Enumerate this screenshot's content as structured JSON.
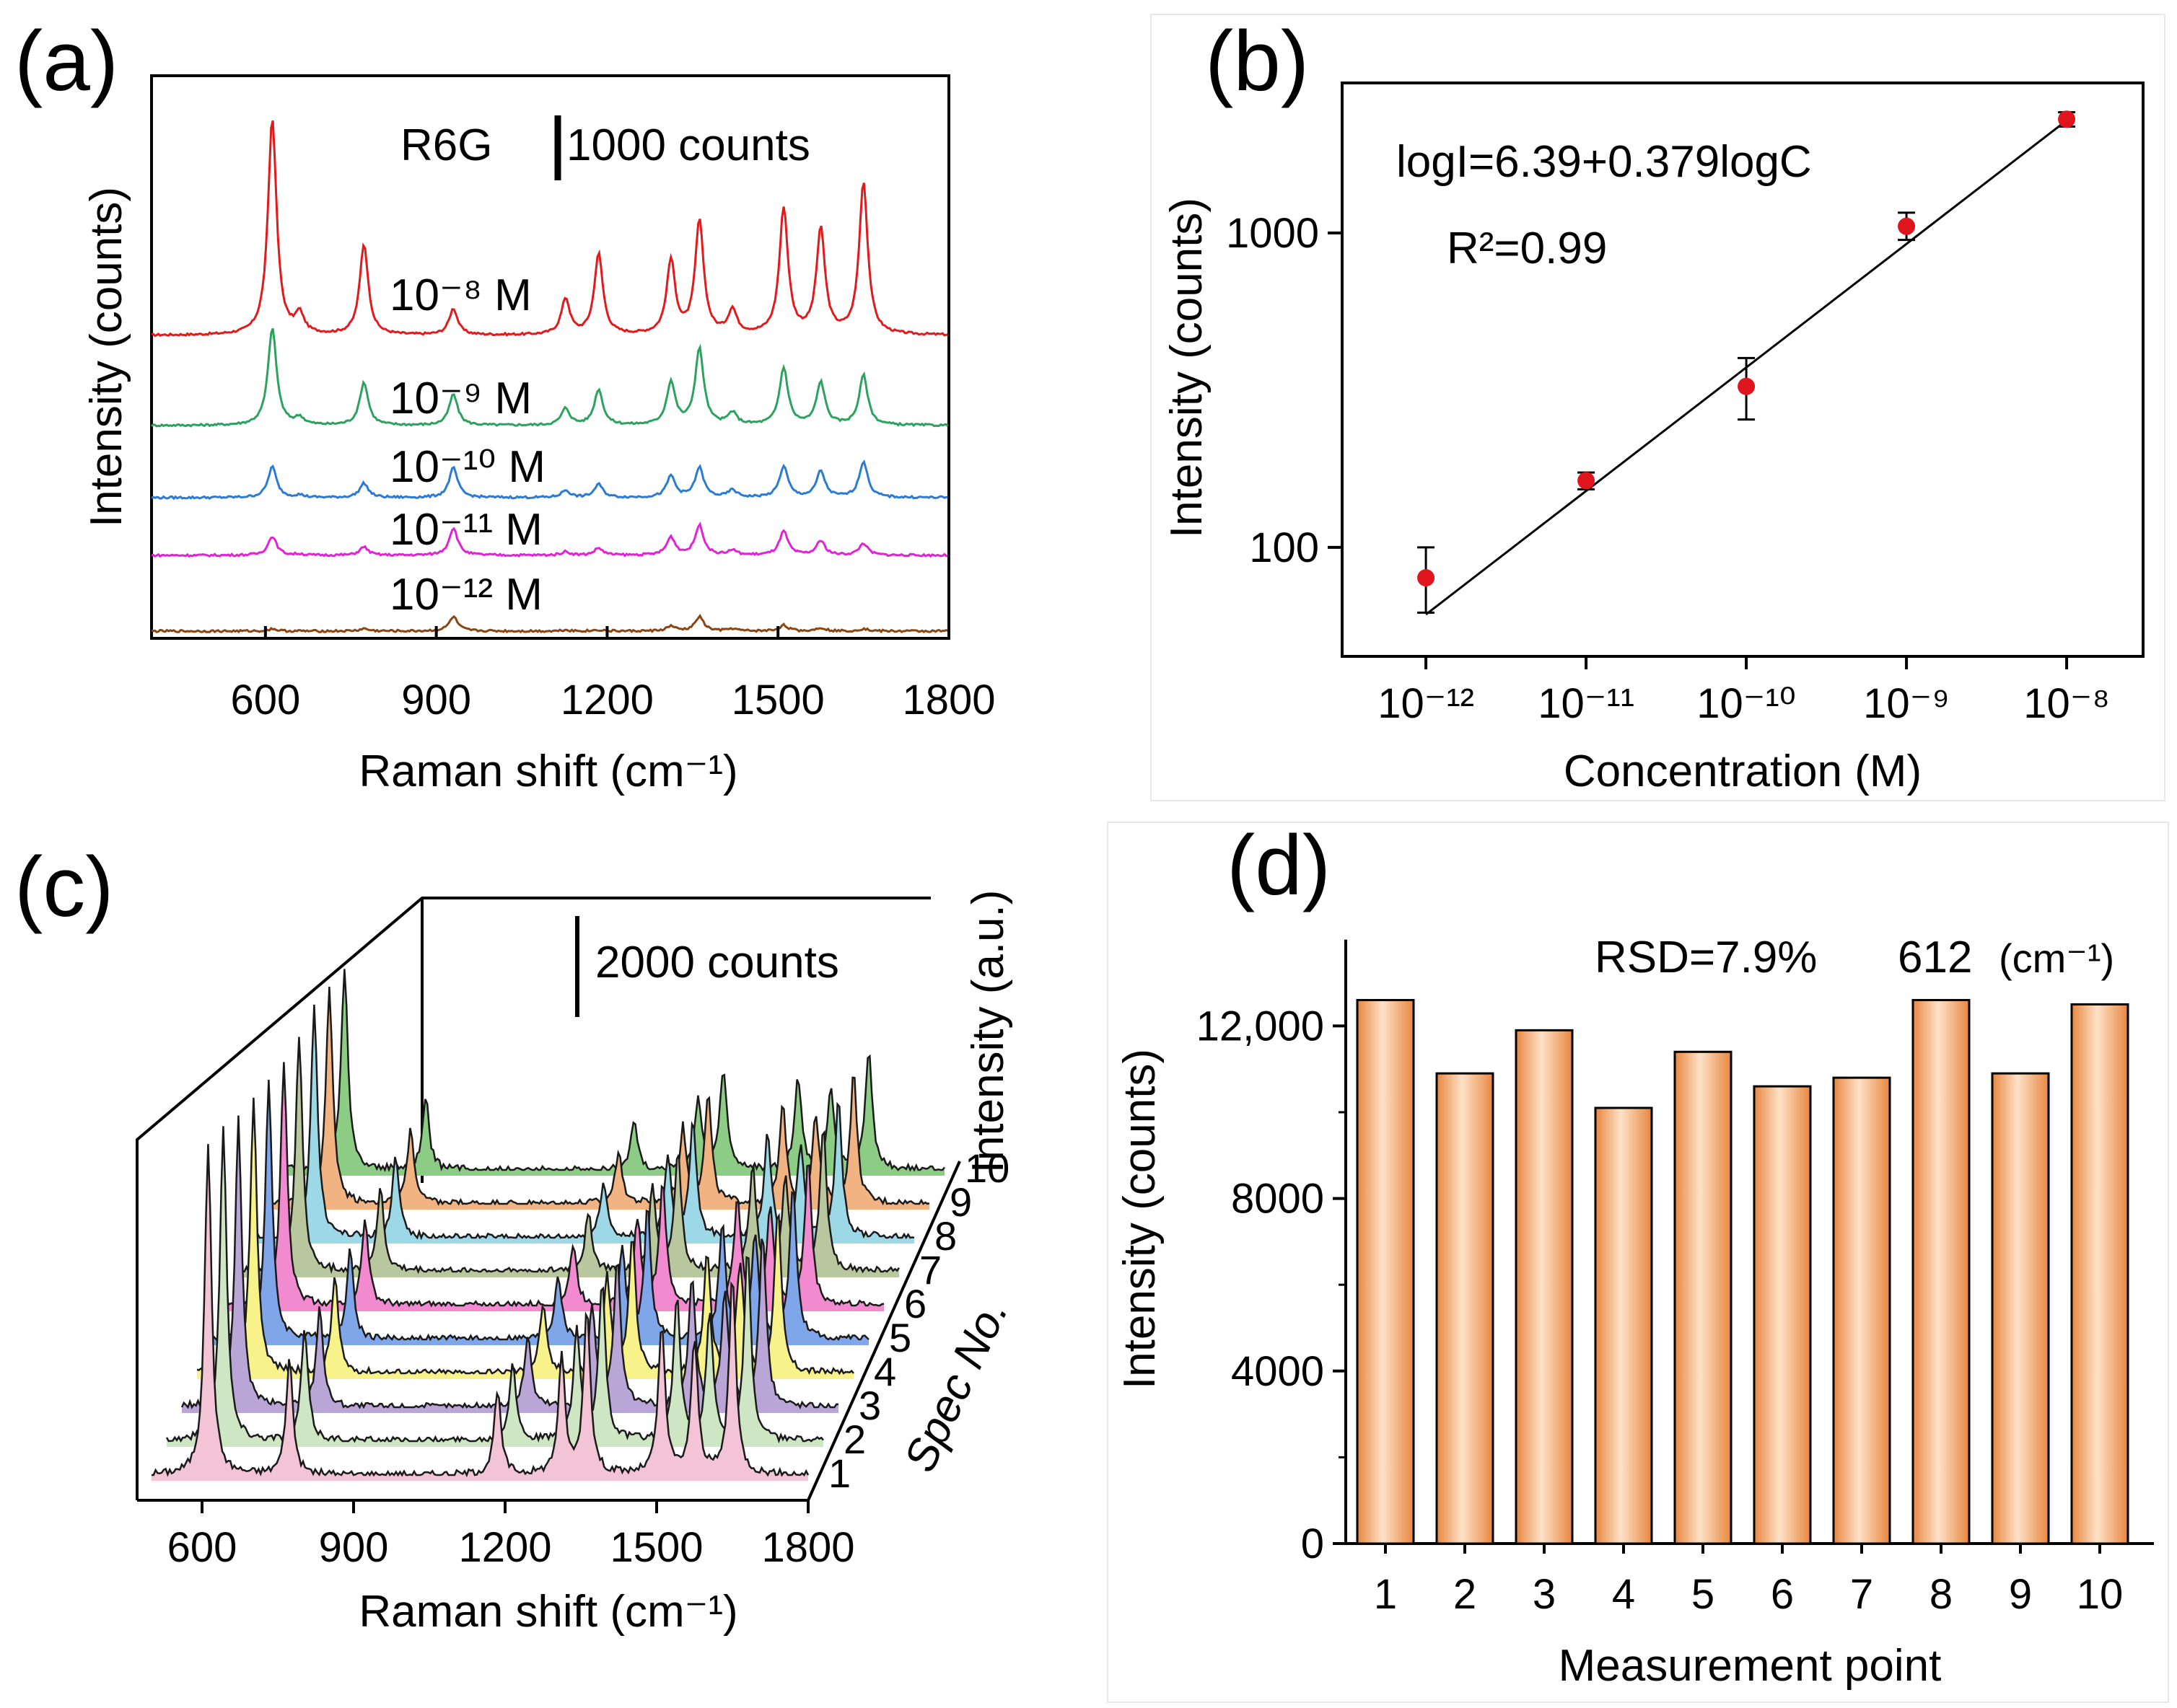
{
  "figure": {
    "panels": {
      "a": {
        "label": "(a)",
        "probe": "R6G",
        "scale_bar_text": "1000 counts",
        "xlabel": "Raman shift",
        "xlabel_unit": "(cm⁻¹)",
        "ylabel": "Intensity (counts)",
        "xticks": [
          "600",
          "900",
          "1200",
          "1500",
          "1800"
        ],
        "series_labels": [
          "10⁻⁸ M",
          "10⁻⁹ M",
          "10⁻¹⁰ M",
          "10⁻¹¹ M",
          "10⁻¹² M"
        ]
      },
      "b": {
        "label": "(b)",
        "equation": "logI=6.39+0.379logC",
        "r2": "R²=0.99",
        "xlabel": "Concentration (M)",
        "ylabel": "Intensity (counts)",
        "xticks": [
          "10⁻¹²",
          "10⁻¹¹",
          "10⁻¹⁰",
          "10⁻⁹",
          "10⁻⁸"
        ],
        "yticks": [
          "100",
          "1000"
        ]
      },
      "c": {
        "label": "(c)",
        "scale_bar_text": "2000 counts",
        "xlabel": "Raman shift",
        "xlabel_unit": "(cm⁻¹)",
        "zlabel": "Intensity (a.u.)",
        "ylabel": "Spec No.",
        "xticks": [
          "600",
          "900",
          "1200",
          "1500",
          "1800"
        ],
        "spec_ticks": [
          "1",
          "2",
          "3",
          "4",
          "5",
          "6",
          "7",
          "8",
          "9",
          "10"
        ]
      },
      "d": {
        "label": "(d)",
        "rsd_text": "RSD=7.9%",
        "peak_text": "612",
        "peak_unit": "(cm⁻¹)",
        "xlabel": "Measurement point",
        "ylabel": "Intensity (counts)",
        "yticks": [
          "0",
          "4000",
          "8000",
          "12,000"
        ]
      }
    }
  },
  "chart_data": [
    {
      "panel": "a",
      "type": "line",
      "title": "",
      "xlabel": "Raman shift (cm⁻¹)",
      "ylabel": "Intensity (counts)",
      "xlim": [
        400,
        1800
      ],
      "peaks_cm": [
        612,
        660,
        773,
        930,
        1127,
        1185,
        1312,
        1362,
        1420,
        1510,
        1575,
        1650
      ],
      "series": [
        {
          "name": "10⁻⁸ M",
          "color": "#e31a1c",
          "baseline": 0.0,
          "peak_heights": [
            1820,
            160,
            760,
            220,
            300,
            680,
            620,
            950,
            200,
            1060,
            880,
            1280
          ]
        },
        {
          "name": "10⁻⁹ M",
          "color": "#2ca25f",
          "baseline": 0.0,
          "peak_heights": [
            820,
            60,
            360,
            260,
            140,
            300,
            360,
            640,
            100,
            480,
            360,
            420
          ]
        },
        {
          "name": "10⁻¹⁰ M",
          "color": "#2b7bd6",
          "baseline": 0.0,
          "peak_heights": [
            260,
            20,
            120,
            250,
            60,
            110,
            180,
            250,
            60,
            260,
            220,
            300
          ]
        },
        {
          "name": "10⁻¹¹ M",
          "color": "#e023d4",
          "baseline": 0.0,
          "peak_heights": [
            160,
            10,
            70,
            230,
            30,
            60,
            150,
            250,
            40,
            200,
            120,
            100
          ]
        },
        {
          "name": "10⁻¹² M",
          "color": "#8b4513",
          "baseline": 0.0,
          "peak_heights": [
            20,
            0,
            20,
            120,
            10,
            10,
            40,
            120,
            20,
            50,
            30,
            20
          ]
        }
      ]
    },
    {
      "panel": "b",
      "type": "scatter",
      "xlabel": "Concentration (M)",
      "ylabel": "Intensity (counts)",
      "xscale": "log",
      "yscale": "log",
      "xlim": [
        3e-13,
        3e-08
      ],
      "ylim": [
        45,
        3000
      ],
      "x": [
        1e-12,
        1e-11,
        1e-10,
        1e-09,
        1e-08
      ],
      "y": [
        80,
        163,
        325,
        1050,
        2300
      ],
      "yerr_low": [
        62,
        153,
        255,
        950,
        2180
      ],
      "yerr_high": [
        100,
        173,
        400,
        1160,
        2420
      ],
      "fit": {
        "intercept": 6.39,
        "slope": 0.379,
        "r2": 0.99
      }
    },
    {
      "panel": "c",
      "type": "line",
      "xlabel": "Raman shift (cm⁻¹)",
      "zlabel": "Intensity (a.u.)",
      "ylabel": "Spec No.",
      "xlim": [
        500,
        1800
      ],
      "peaks_cm": [
        612,
        773,
        1185,
        1312,
        1362,
        1510,
        1575,
        1650
      ],
      "spectra": [
        {
          "spec": 1,
          "color": "#f2c4d6"
        },
        {
          "spec": 2,
          "color": "#cfe6c4"
        },
        {
          "spec": 3,
          "color": "#b9a6d6"
        },
        {
          "spec": 4,
          "color": "#f7f28a"
        },
        {
          "spec": 5,
          "color": "#7fa6e8"
        },
        {
          "spec": 6,
          "color": "#f28ad0"
        },
        {
          "spec": 7,
          "color": "#b8c79e"
        },
        {
          "spec": 8,
          "color": "#9dd8e6"
        },
        {
          "spec": 9,
          "color": "#f2b383"
        },
        {
          "spec": 10,
          "color": "#8ccc84"
        }
      ],
      "peak_scale": [
        1.0,
        0.35,
        0.25,
        0.35,
        0.5,
        0.45,
        0.4,
        0.6
      ]
    },
    {
      "panel": "d",
      "type": "bar",
      "xlabel": "Measurement point",
      "ylabel": "Intensity (counts)",
      "ylim": [
        0,
        14000
      ],
      "categories": [
        "1",
        "2",
        "3",
        "4",
        "5",
        "6",
        "7",
        "8",
        "9",
        "10"
      ],
      "values": [
        12600,
        10900,
        11900,
        10100,
        11400,
        10600,
        10800,
        12600,
        10900,
        12500
      ],
      "bar_color": "#f3a86b"
    }
  ]
}
